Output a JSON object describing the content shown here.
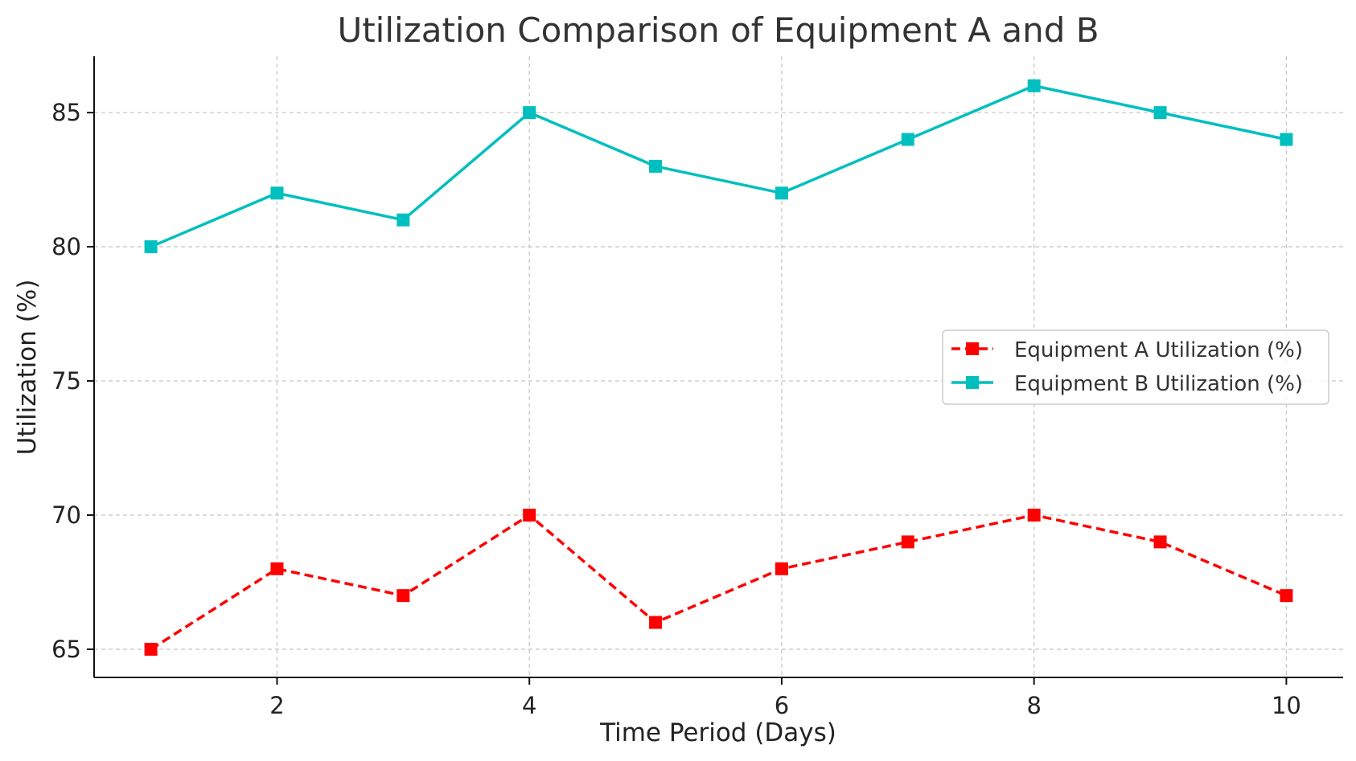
{
  "chart_data": {
    "type": "line",
    "title": "Utilization Comparison of Equipment A and B",
    "xlabel": "Time Period (Days)",
    "ylabel": "Utilization (%)",
    "x": [
      1,
      2,
      3,
      4,
      5,
      6,
      7,
      8,
      9,
      10
    ],
    "xlim": [
      0.55,
      10.45
    ],
    "ylim": [
      63.95,
      87.1
    ],
    "xticks": [
      2,
      4,
      6,
      8,
      10
    ],
    "yticks": [
      65,
      70,
      75,
      80,
      85
    ],
    "grid": true,
    "legend_position": "center-right",
    "series": [
      {
        "name": "Equipment A Utilization (%)",
        "values": [
          65,
          68,
          67,
          70,
          66,
          68,
          69,
          70,
          69,
          67
        ],
        "color": "#ff0000",
        "line_style": "dashed",
        "marker": "square"
      },
      {
        "name": "Equipment B Utilization (%)",
        "values": [
          80,
          82,
          81,
          85,
          83,
          82,
          84,
          86,
          85,
          84
        ],
        "color": "#00bfbf",
        "line_style": "solid",
        "marker": "square"
      }
    ]
  }
}
